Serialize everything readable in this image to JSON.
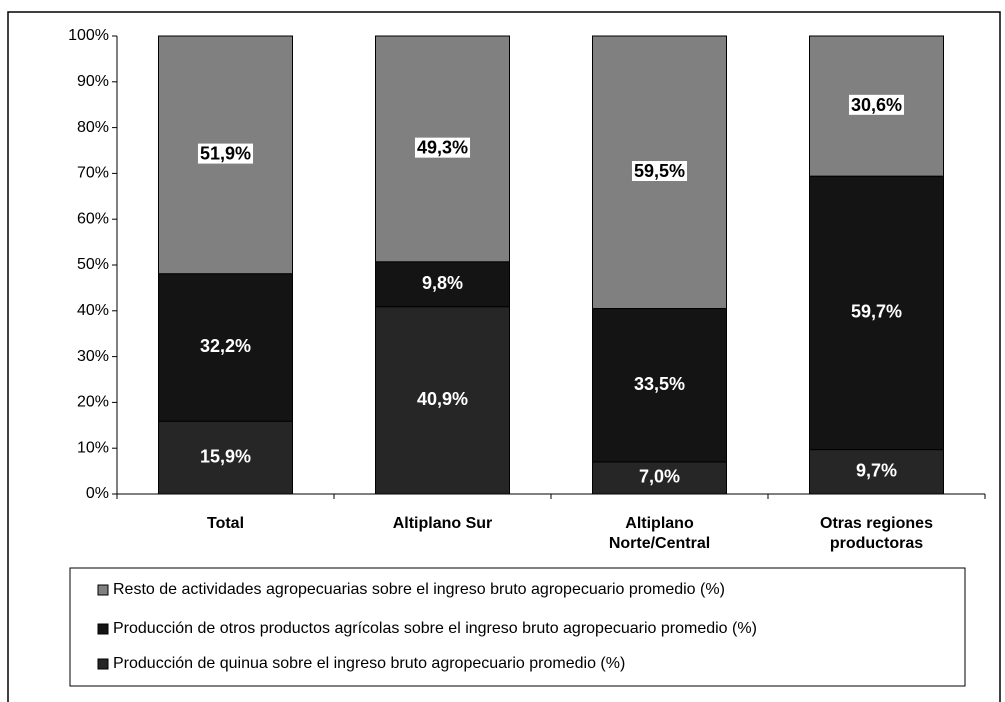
{
  "chart_data": {
    "type": "bar",
    "stacked": true,
    "categories": [
      "Total",
      "Altiplano Sur",
      "Altiplano Norte/Central",
      "Otras regiones productoras"
    ],
    "series": [
      {
        "name": "Producción de quinua sobre el ingreso bruto agropecuario promedio (%)",
        "color": "#262626",
        "values": [
          15.9,
          40.9,
          7.0,
          9.7
        ],
        "value_labels": [
          "15,9%",
          "40,9%",
          "7,0%",
          "9,7%"
        ]
      },
      {
        "name": "Producción de otros productos agrícolas sobre el ingreso bruto agropecuario promedio (%)",
        "color": "#141414",
        "values": [
          32.2,
          9.8,
          33.5,
          59.7
        ],
        "value_labels": [
          "32,2%",
          "9,8%",
          "33,5%",
          "59,7%"
        ]
      },
      {
        "name": "Resto de actividades agropecuarias sobre el ingreso bruto agropecuario promedio (%)",
        "color": "#808080",
        "values": [
          51.9,
          49.3,
          59.5,
          30.6
        ],
        "value_labels": [
          "51,9%",
          "49,3%",
          "59,5%",
          "30,6%"
        ]
      }
    ],
    "ylim": [
      0,
      100
    ],
    "yticks": [
      {
        "value": 0,
        "label": "0%"
      },
      {
        "value": 10,
        "label": "10%"
      },
      {
        "value": 20,
        "label": "20%"
      },
      {
        "value": 30,
        "label": "30%"
      },
      {
        "value": 40,
        "label": "40%"
      },
      {
        "value": 50,
        "label": "50%"
      },
      {
        "value": 60,
        "label": "60%"
      },
      {
        "value": 70,
        "label": "70%"
      },
      {
        "value": 80,
        "label": "80%"
      },
      {
        "value": 90,
        "label": "90%"
      },
      {
        "value": 100,
        "label": "100%"
      }
    ],
    "grid": false,
    "legend": "bottom"
  }
}
